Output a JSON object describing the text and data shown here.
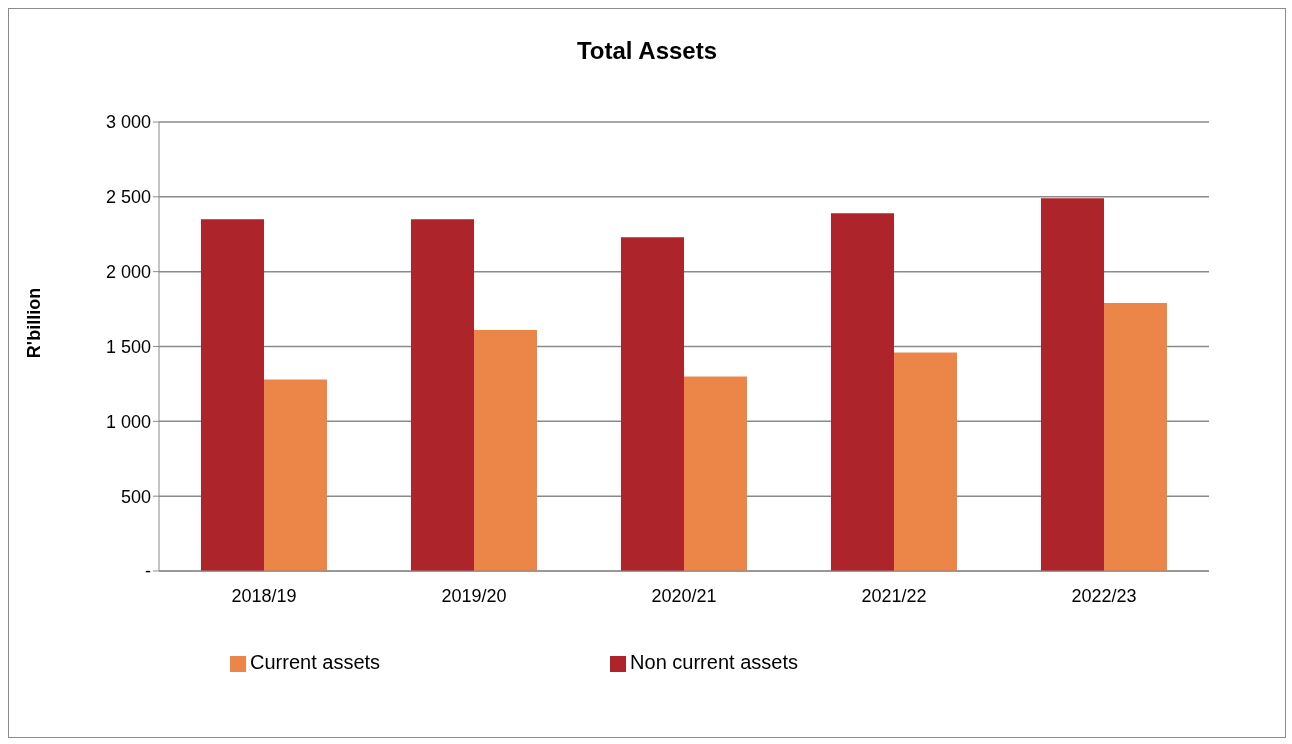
{
  "chart_data": {
    "type": "bar",
    "title": "Total Assets",
    "ylabel": "R'billion",
    "categories": [
      "2018/19",
      "2019/20",
      "2020/21",
      "2021/22",
      "2022/23"
    ],
    "series": [
      {
        "name": "Non current assets",
        "color": "#ad242b",
        "values": [
          2350,
          2350,
          2230,
          2390,
          2490
        ]
      },
      {
        "name": "Current assets",
        "color": "#ec8548",
        "values": [
          1280,
          1610,
          1300,
          1460,
          1790
        ]
      }
    ],
    "ylim": [
      0,
      3000
    ],
    "yticks": [
      {
        "value": 0,
        "label": "-"
      },
      500,
      {
        "value": 1000,
        "label": "1 000"
      },
      {
        "value": 1500,
        "label": "1 500"
      },
      {
        "value": 2000,
        "label": "2 000"
      },
      {
        "value": 2500,
        "label": "2 500"
      },
      {
        "value": 3000,
        "label": "3 000"
      }
    ],
    "grid": "y",
    "legend": "bottom"
  }
}
